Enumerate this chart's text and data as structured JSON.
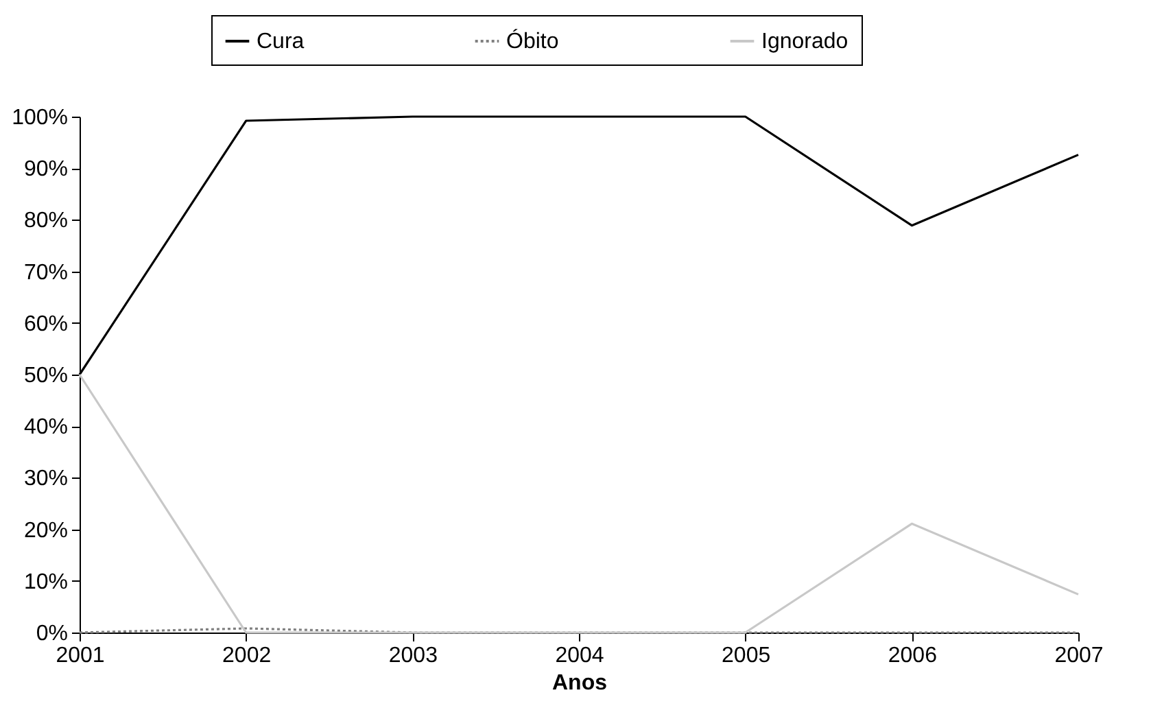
{
  "chart_data": {
    "type": "line",
    "xlabel": "Anos",
    "x": [
      2001,
      2002,
      2003,
      2004,
      2005,
      2006,
      2007
    ],
    "xlim": [
      2001,
      2007
    ],
    "xticks": [
      2001,
      2002,
      2003,
      2004,
      2005,
      2006,
      2007
    ],
    "ylim": [
      0,
      100
    ],
    "yticks": [
      {
        "value": 0,
        "label": "0%"
      },
      {
        "value": 10,
        "label": "10%"
      },
      {
        "value": 20,
        "label": "20%"
      },
      {
        "value": 30,
        "label": "30%"
      },
      {
        "value": 40,
        "label": "40%"
      },
      {
        "value": 50,
        "label": "50%"
      },
      {
        "value": 60,
        "label": "60%"
      },
      {
        "value": 70,
        "label": "70%"
      },
      {
        "value": 80,
        "label": "80%"
      },
      {
        "value": 90,
        "label": "90%"
      },
      {
        "value": 100,
        "label": "100%"
      }
    ],
    "grid": false,
    "legend": "top",
    "marker": "none",
    "series": [
      {
        "name": "Cura",
        "color": "#000000",
        "line_style": "solid",
        "values": [
          50,
          99.2,
          100,
          100,
          100,
          78.9,
          92.6
        ]
      },
      {
        "name": "Óbito",
        "color": "#808080",
        "line_style": "dotted",
        "values": [
          0,
          0.8,
          0,
          0,
          0,
          0,
          0
        ]
      },
      {
        "name": "Ignorado",
        "color": "#c8c8c8",
        "line_style": "solid",
        "values": [
          50,
          0,
          0,
          0,
          0,
          21.1,
          7.4
        ]
      }
    ]
  }
}
